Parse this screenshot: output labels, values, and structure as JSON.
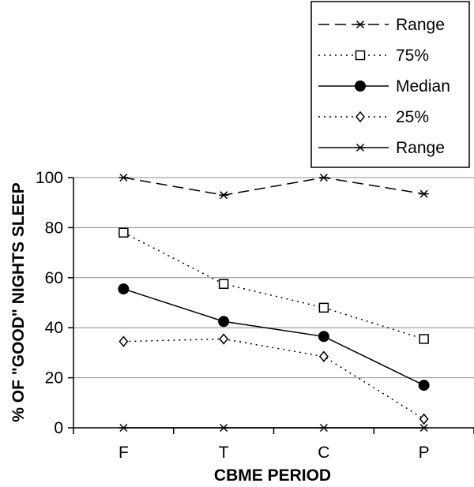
{
  "chart_data": {
    "type": "line",
    "title": "",
    "xlabel": "CBME PERIOD",
    "ylabel": "% OF \"GOOD\" NIGHTS SLEEP",
    "categories": [
      "F",
      "T",
      "C",
      "P"
    ],
    "ylim": [
      0,
      100
    ],
    "yticks": [
      "0",
      "20",
      "40",
      "60",
      "80",
      "100"
    ],
    "grid": "horizontal",
    "legend_position": "top-right",
    "series": [
      {
        "name": "Range",
        "values": [
          100,
          93,
          100,
          93.5
        ],
        "line": "dashed",
        "marker": "star"
      },
      {
        "name": "75%",
        "values": [
          78,
          57.5,
          48,
          35.5
        ],
        "line": "dotted",
        "marker": "open-square"
      },
      {
        "name": "Median",
        "values": [
          55.5,
          42.5,
          36.5,
          17
        ],
        "line": "solid",
        "marker": "filled-circle"
      },
      {
        "name": "25%",
        "values": [
          34.5,
          35.5,
          28.5,
          3.5
        ],
        "line": "dotted",
        "marker": "open-diamond"
      },
      {
        "name": "Range",
        "values": [
          0,
          0,
          0,
          0
        ],
        "line": "solid",
        "marker": "star"
      }
    ]
  }
}
